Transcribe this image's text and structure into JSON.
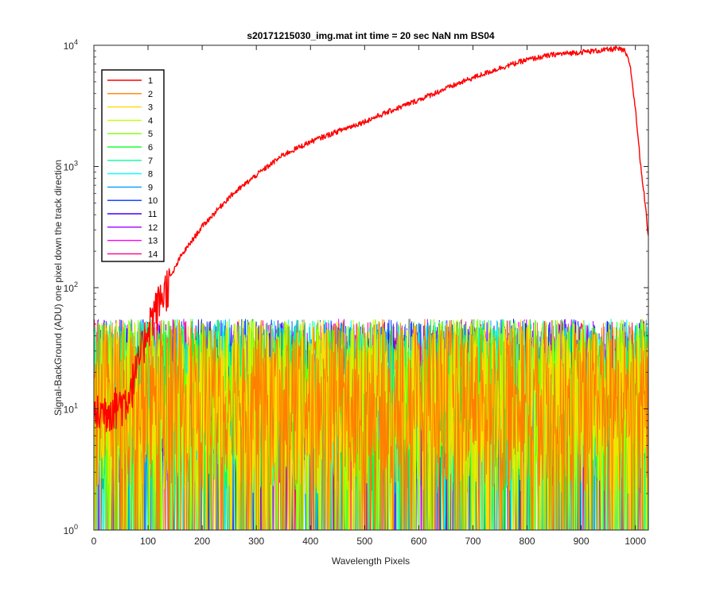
{
  "chart_data": {
    "type": "line",
    "title": "s20171215030_img.mat int time = 20 sec  NaN nm BS04",
    "xlabel": "Wavelength Pixels",
    "ylabel": "Signal-BackGround (ADU) one pixel down the track direction",
    "xlim": [
      0,
      1024
    ],
    "ylim": [
      1,
      10000
    ],
    "yscale": "log",
    "x_ticks": [
      "0",
      "100",
      "200",
      "300",
      "400",
      "500",
      "600",
      "700",
      "800",
      "900",
      "1000"
    ],
    "y_ticks": [
      {
        "base": "10",
        "exp": "0"
      },
      {
        "base": "10",
        "exp": "1"
      },
      {
        "base": "10",
        "exp": "2"
      },
      {
        "base": "10",
        "exp": "3"
      },
      {
        "base": "10",
        "exp": "4"
      }
    ],
    "grid": false,
    "legend_position": "top-left",
    "series": [
      {
        "name": "1",
        "color": "#ff0000",
        "profile": [
          [
            0,
            9
          ],
          [
            60,
            12
          ],
          [
            80,
            22
          ],
          [
            100,
            50
          ],
          [
            130,
            95
          ],
          [
            160,
            180
          ],
          [
            200,
            320
          ],
          [
            250,
            560
          ],
          [
            300,
            850
          ],
          [
            350,
            1250
          ],
          [
            400,
            1600
          ],
          [
            450,
            1950
          ],
          [
            500,
            2350
          ],
          [
            550,
            2900
          ],
          [
            600,
            3550
          ],
          [
            650,
            4400
          ],
          [
            700,
            5400
          ],
          [
            750,
            6500
          ],
          [
            800,
            7600
          ],
          [
            850,
            8400
          ],
          [
            900,
            8800
          ],
          [
            940,
            9100
          ],
          [
            965,
            9400
          ],
          [
            980,
            9000
          ],
          [
            990,
            7000
          ],
          [
            1000,
            3000
          ],
          [
            1010,
            1000
          ],
          [
            1018,
            500
          ],
          [
            1024,
            260
          ]
        ]
      },
      {
        "name": "2",
        "color": "#ff7f00"
      },
      {
        "name": "3",
        "color": "#ffdb00"
      },
      {
        "name": "4",
        "color": "#c7ff00"
      },
      {
        "name": "5",
        "color": "#7fff00"
      },
      {
        "name": "6",
        "color": "#19ff33"
      },
      {
        "name": "7",
        "color": "#00ff99"
      },
      {
        "name": "8",
        "color": "#00ffff"
      },
      {
        "name": "9",
        "color": "#009fff"
      },
      {
        "name": "10",
        "color": "#0033ff"
      },
      {
        "name": "11",
        "color": "#4000ff"
      },
      {
        "name": "12",
        "color": "#a000ff"
      },
      {
        "name": "13",
        "color": "#ff00ff"
      },
      {
        "name": "14",
        "color": "#ff0080"
      }
    ],
    "noise_range": [
      1,
      70
    ]
  }
}
